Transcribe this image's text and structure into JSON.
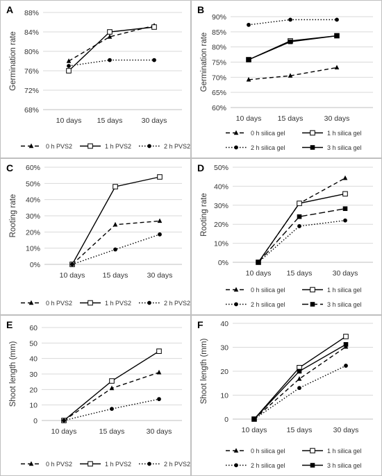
{
  "chart_data": [
    {
      "panel": "A",
      "type": "line",
      "categories": [
        "10 days",
        "15 days",
        "30 days"
      ],
      "ylabel": "Germination rate",
      "ylim": [
        68,
        88
      ],
      "yticks": [
        "68%",
        "72%",
        "76%",
        "80%",
        "84%",
        "88%"
      ],
      "series": [
        {
          "name": "0 h PVS2",
          "values": [
            78.0,
            83.0,
            85.3
          ],
          "dash": "dashed",
          "marker": "triangle"
        },
        {
          "name": "1 h PVS2",
          "values": [
            76.0,
            84.0,
            85.0
          ],
          "dash": "solid",
          "marker": "square-open"
        },
        {
          "name": "2 h PVS2",
          "values": [
            77.0,
            78.2,
            78.2
          ],
          "dash": "dotted",
          "marker": "circle"
        }
      ]
    },
    {
      "panel": "B",
      "type": "line",
      "categories": [
        "10 days",
        "15 days",
        "30 days"
      ],
      "ylabel": "Germination rate",
      "ylim": [
        60,
        90
      ],
      "yticks": [
        "60%",
        "65%",
        "70%",
        "75%",
        "80%",
        "85%",
        "90%"
      ],
      "series": [
        {
          "name": "0 h silica gel",
          "values": [
            69.2,
            70.5,
            73.2
          ],
          "dash": "dashed",
          "marker": "triangle"
        },
        {
          "name": "1 h silica gel",
          "values": [
            75.8,
            82.0,
            83.7
          ],
          "dash": "solid",
          "marker": "square-open"
        },
        {
          "name": "2 h silica gel",
          "values": [
            87.3,
            89.0,
            89.0
          ],
          "dash": "dotted",
          "marker": "circle"
        },
        {
          "name": "3 h silica gel",
          "values": [
            75.8,
            81.7,
            83.7
          ],
          "dash": "solid",
          "marker": "square"
        }
      ]
    },
    {
      "panel": "C",
      "type": "line",
      "categories": [
        "10 days",
        "15 days",
        "30 days"
      ],
      "ylabel": "Rooting rate",
      "ylim": [
        0,
        60
      ],
      "yticks": [
        "0%",
        "10%",
        "20%",
        "30%",
        "40%",
        "50%",
        "60%"
      ],
      "series": [
        {
          "name": "0 h PVS2",
          "values": [
            0,
            24.5,
            26.8
          ],
          "dash": "dashed",
          "marker": "triangle"
        },
        {
          "name": "1 h PVS2",
          "values": [
            0,
            48.0,
            54.0
          ],
          "dash": "solid",
          "marker": "square-open"
        },
        {
          "name": "2 h PVS2",
          "values": [
            0,
            9.2,
            18.5
          ],
          "dash": "dotted",
          "marker": "circle"
        }
      ]
    },
    {
      "panel": "D",
      "type": "line",
      "categories": [
        "10 days",
        "15 days",
        "30 days"
      ],
      "ylabel": "Rooting rate",
      "ylim": [
        0,
        50
      ],
      "yticks": [
        "0%",
        "10%",
        "20%",
        "30%",
        "40%",
        "50%"
      ],
      "series": [
        {
          "name": "0 h silica gel",
          "values": [
            0,
            31.0,
            44.3
          ],
          "dash": "dashed",
          "marker": "triangle"
        },
        {
          "name": "1 h silica gel",
          "values": [
            0,
            31.0,
            36.0
          ],
          "dash": "solid",
          "marker": "square-open"
        },
        {
          "name": "2 h silica gel",
          "values": [
            0,
            19.0,
            22.0
          ],
          "dash": "dotted",
          "marker": "circle"
        },
        {
          "name": "3 h silica gel",
          "values": [
            0,
            24.0,
            28.2
          ],
          "dash": "longdash",
          "marker": "square"
        }
      ]
    },
    {
      "panel": "E",
      "type": "line",
      "categories": [
        "10 days",
        "15 days",
        "30 days"
      ],
      "ylabel": "Shoot length (mm)",
      "ylim": [
        0,
        60
      ],
      "yticks": [
        "0",
        "10",
        "20",
        "30",
        "40",
        "50",
        "60"
      ],
      "series": [
        {
          "name": "0 h PVS2",
          "values": [
            0,
            20.8,
            31.0
          ],
          "dash": "dashed",
          "marker": "triangle"
        },
        {
          "name": "1 h PVS2",
          "values": [
            0,
            25.5,
            44.7
          ],
          "dash": "solid",
          "marker": "square-open"
        },
        {
          "name": "2 h PVS2",
          "values": [
            0,
            7.5,
            13.8
          ],
          "dash": "dotted",
          "marker": "circle"
        }
      ]
    },
    {
      "panel": "F",
      "type": "line",
      "categories": [
        "10 days",
        "15 days",
        "30 days"
      ],
      "ylabel": "Shoot length (mm)",
      "ylim": [
        0,
        40
      ],
      "yticks": [
        "0",
        "10",
        "20",
        "30",
        "40"
      ],
      "series": [
        {
          "name": "0 h silica gel",
          "values": [
            0,
            16.8,
            30.2
          ],
          "dash": "dashed",
          "marker": "triangle"
        },
        {
          "name": "1 h silica gel",
          "values": [
            0,
            21.5,
            34.5
          ],
          "dash": "solid",
          "marker": "square-open"
        },
        {
          "name": "2 h silica gel",
          "values": [
            0,
            13.0,
            22.3
          ],
          "dash": "dotted",
          "marker": "circle"
        },
        {
          "name": "3 h silica gel",
          "values": [
            0,
            20.0,
            31.2
          ],
          "dash": "solid",
          "marker": "square"
        }
      ]
    }
  ]
}
